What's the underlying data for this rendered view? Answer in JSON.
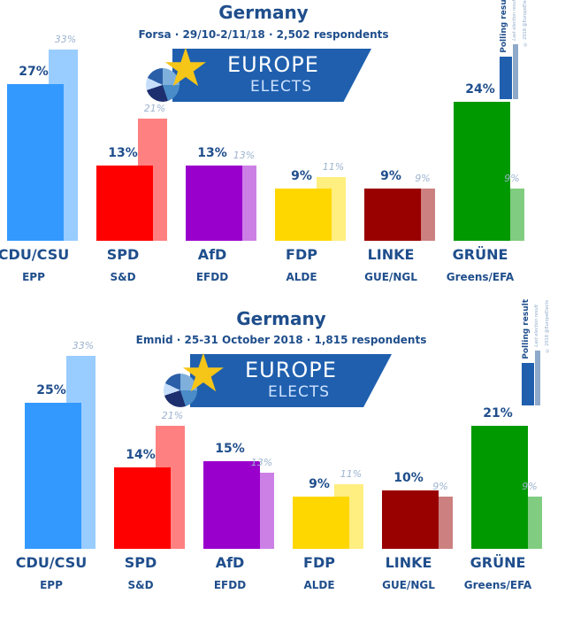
{
  "chart_data": [
    {
      "type": "bar",
      "title": "Germany",
      "subtitle": "Forsa · 29/10-2/11/18 · 2,502 respondents",
      "categories": [
        "CDU/CSU",
        "SPD",
        "AfD",
        "FDP",
        "LINKE",
        "GRÜNE"
      ],
      "groups": [
        "EPP",
        "S&D",
        "EFDD",
        "ALDE",
        "GUE/NGL",
        "Greens/EFA"
      ],
      "series": [
        {
          "name": "Polling result",
          "values": [
            27,
            13,
            13,
            9,
            9,
            24
          ]
        },
        {
          "name": "Last election result",
          "values": [
            33,
            21,
            13,
            11,
            9,
            9
          ]
        }
      ],
      "ylim": [
        0,
        35
      ]
    },
    {
      "type": "bar",
      "title": "Germany",
      "subtitle": "Emnid · 25-31 October 2018 · 1,815 respondents",
      "categories": [
        "CDU/CSU",
        "SPD",
        "AfD",
        "FDP",
        "LINKE",
        "GRÜNE"
      ],
      "groups": [
        "EPP",
        "S&D",
        "EFDD",
        "ALDE",
        "GUE/NGL",
        "Greens/EFA"
      ],
      "series": [
        {
          "name": "Polling result",
          "values": [
            25,
            14,
            15,
            9,
            10,
            21
          ]
        },
        {
          "name": "Last election result",
          "values": [
            33,
            21,
            13,
            11,
            9,
            9
          ]
        }
      ],
      "ylim": [
        0,
        35
      ]
    }
  ],
  "colors": {
    "main": [
      "#3399ff",
      "#ff0000",
      "#9900cc",
      "#ffd700",
      "#990000",
      "#009900"
    ],
    "light": [
      "#99ccff",
      "#ff8080",
      "#cc80e6",
      "#ffee80",
      "#cc8080",
      "#80cc80"
    ]
  },
  "logo": {
    "line1": "EUROPE",
    "line2": "ELECTS"
  },
  "legend": {
    "polling": "Polling result",
    "last": "Last election result",
    "copyright": "© 2018 @EuropeElects"
  }
}
